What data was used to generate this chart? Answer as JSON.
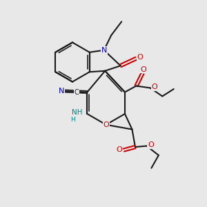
{
  "bg_color": "#e8e8e8",
  "bond_color": "#1a1a1a",
  "bond_width": 1.5,
  "N_blue": "#0000cc",
  "N_teal": "#008080",
  "O_color": "#cc0000",
  "C_color": "#1a1a1a",
  "figsize": [
    3.0,
    3.0
  ],
  "dpi": 100,
  "xlim": [
    0,
    10
  ],
  "ylim": [
    0,
    10
  ],
  "font_size_atom": 7.5
}
